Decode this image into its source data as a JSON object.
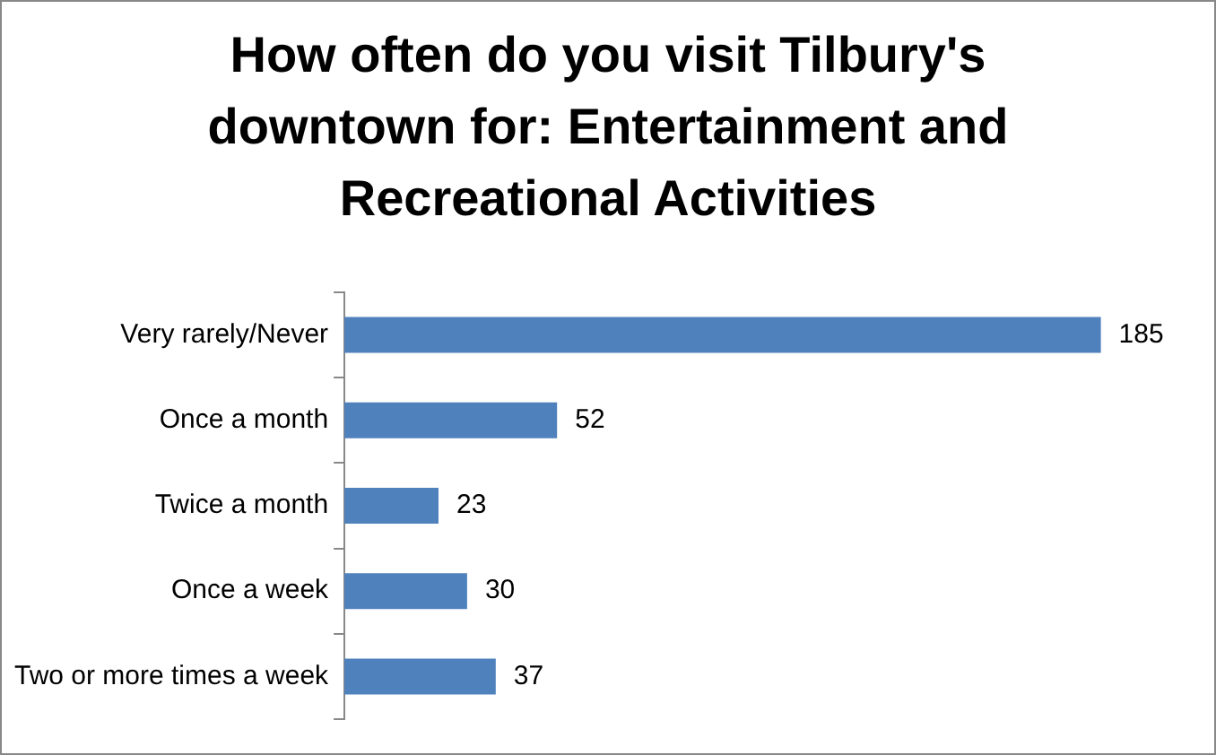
{
  "chart_data": {
    "type": "bar",
    "orientation": "horizontal",
    "title": "How often do you visit Tilbury's downtown for: Entertainment and Recreational Activities",
    "categories": [
      "Very rarely/Never",
      "Once a month",
      "Twice a month",
      "Once a week",
      "Two or more times a week"
    ],
    "values": [
      185,
      52,
      23,
      30,
      37
    ],
    "color": "#4f81bd",
    "data_labels": true,
    "legend": false,
    "grid": false
  }
}
